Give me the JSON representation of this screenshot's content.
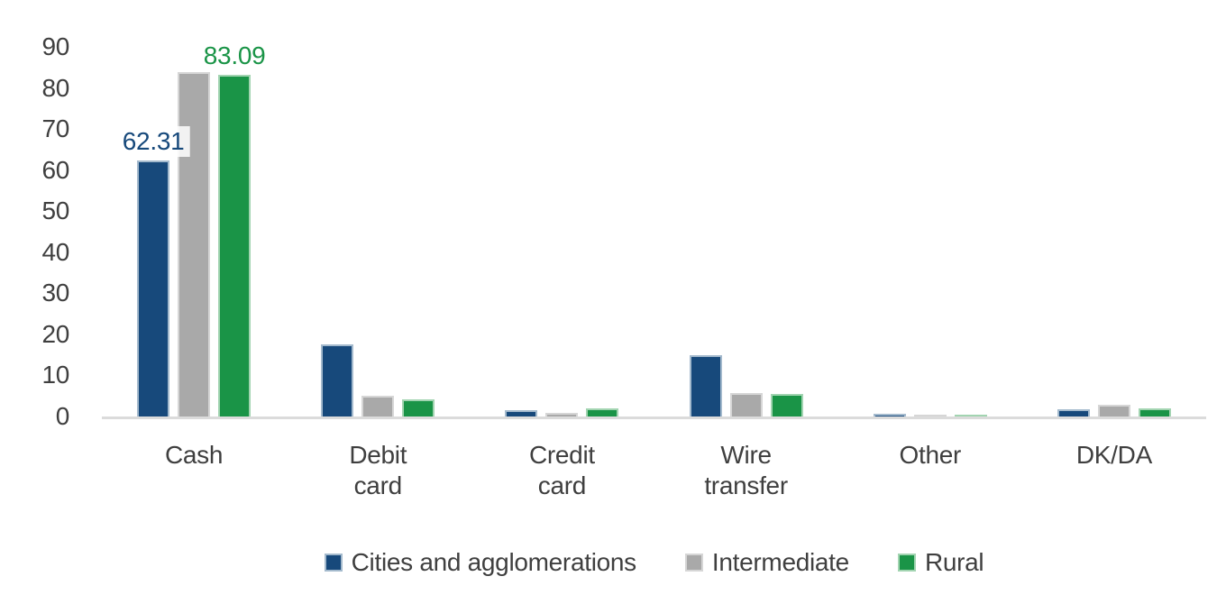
{
  "chart_data": {
    "type": "bar",
    "title": "",
    "xlabel": "",
    "ylabel": "",
    "grid": false,
    "legend_position": "bottom",
    "categories": [
      "Cash",
      "Debit card",
      "Credit card",
      "Wire transfer",
      "Other",
      "DK/DA"
    ],
    "series": [
      {
        "name": "Cities and agglomerations",
        "color": "#17497B",
        "border_color": "#A4BACD",
        "values": [
          62.31,
          17.6,
          1.6,
          15.0,
          0.7,
          1.8
        ]
      },
      {
        "name": "Intermediate",
        "color": "#A9A9A9",
        "border_color": "#D6D6D6",
        "values": [
          83.9,
          5.1,
          0.9,
          5.7,
          0.4,
          2.9
        ]
      },
      {
        "name": "Rural",
        "color": "#1A9447",
        "border_color": "#A2D4B1",
        "values": [
          83.09,
          4.2,
          1.9,
          5.5,
          0.3,
          2.0
        ]
      }
    ],
    "data_labels": [
      {
        "series_index": 0,
        "category_index": 0,
        "text": "62.31",
        "background": true
      },
      {
        "series_index": 2,
        "category_index": 0,
        "text": "83.09",
        "background": false
      }
    ],
    "y_axis": {
      "min": 0,
      "max": 90,
      "step": 10,
      "tick_labels": [
        "0",
        "10",
        "20",
        "30",
        "40",
        "50",
        "60",
        "70",
        "80",
        "90"
      ]
    }
  },
  "colors": {
    "axis_text": "#3F3F3F",
    "axis_line": "#DBDBDB",
    "data_label_bg": "rgba(255,255,255,0.85)"
  }
}
